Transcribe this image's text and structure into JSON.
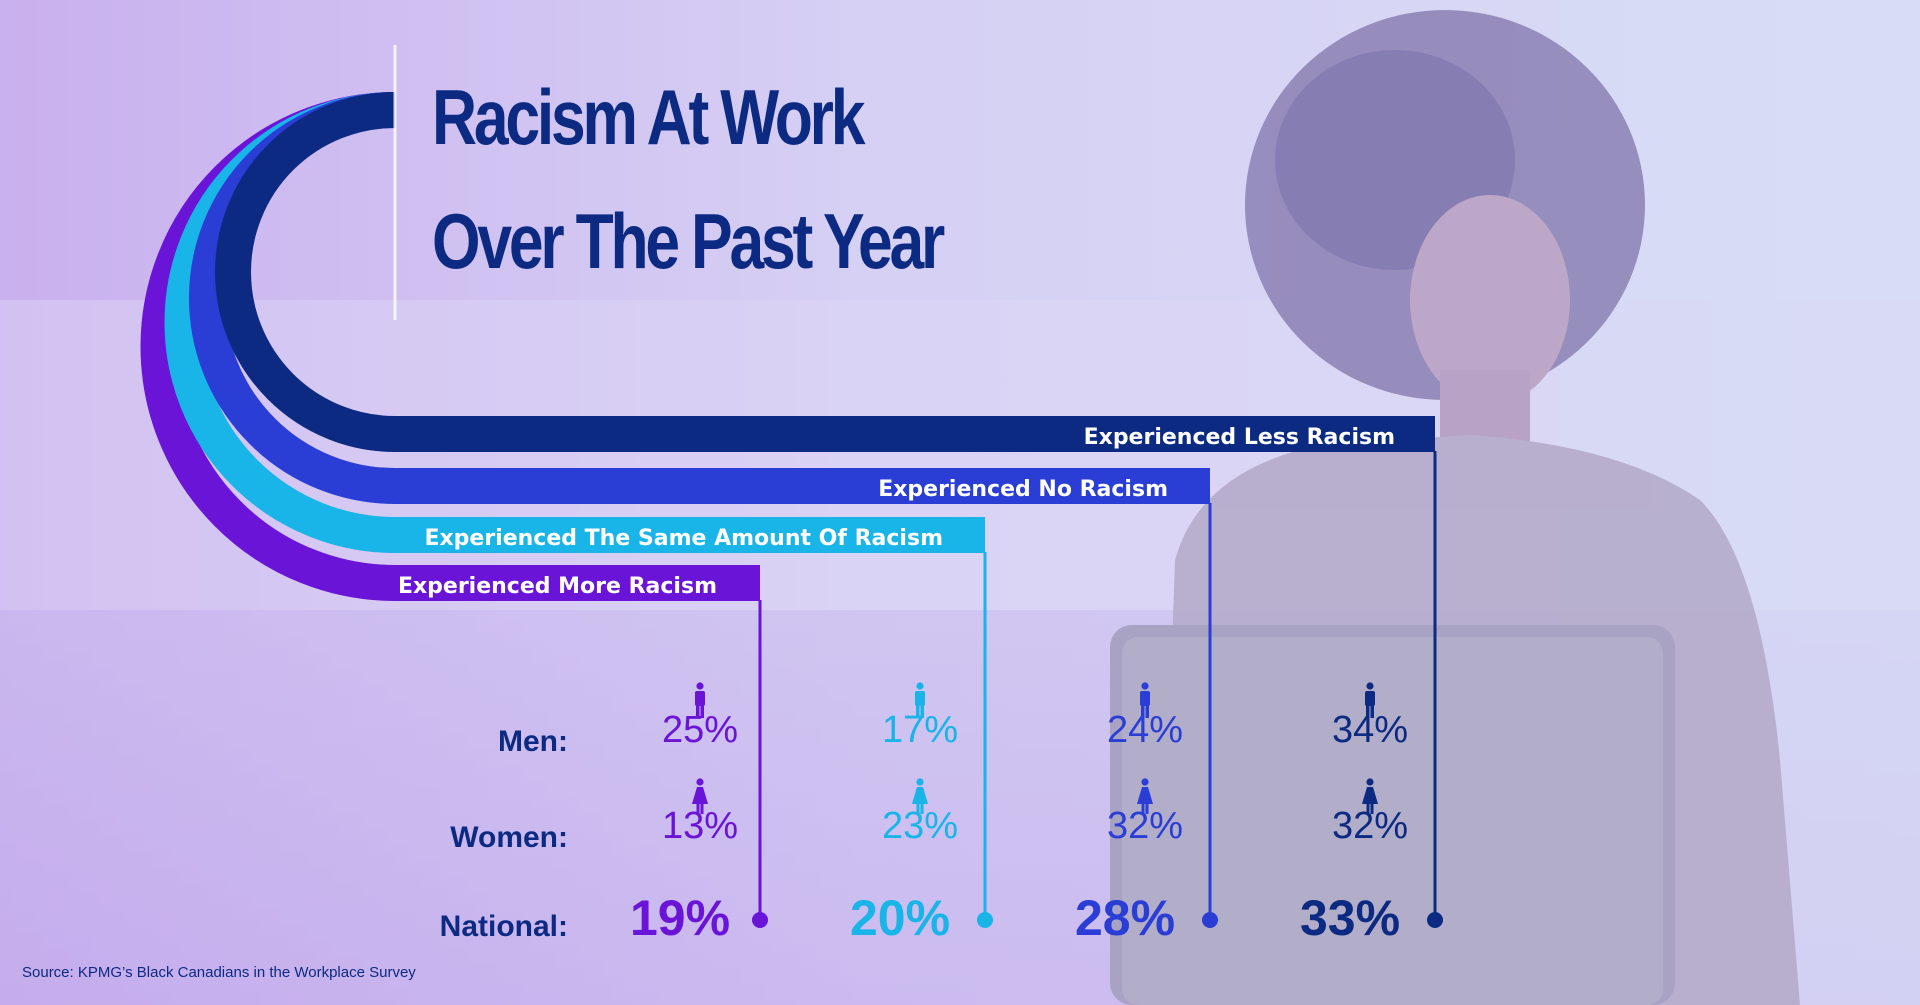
{
  "title_line1": "Racism At Work",
  "title_line2": "Over The Past Year",
  "source": "Source: KPMG’s Black Canadians in the Workplace Survey",
  "row_labels": {
    "men": "Men:",
    "women": "Women:",
    "national": "National:"
  },
  "chart_data": {
    "type": "table",
    "title": "Racism At Work Over The Past Year",
    "categories": [
      "Experienced More Racism",
      "Experienced The Same Amount Of Racism",
      "Experienced No Racism",
      "Experienced Less Racism"
    ],
    "series": [
      {
        "name": "Men:",
        "values": [
          25,
          17,
          24,
          34
        ]
      },
      {
        "name": "Women:",
        "values": [
          13,
          23,
          32,
          32
        ]
      },
      {
        "name": "National:",
        "values": [
          19,
          20,
          28,
          33
        ]
      }
    ],
    "unit": "%",
    "colors": [
      "#6a14d8",
      "#19b4e8",
      "#2a3ed6",
      "#0c2a82"
    ],
    "icons": [
      "man-icon",
      "woman-icon"
    ]
  }
}
